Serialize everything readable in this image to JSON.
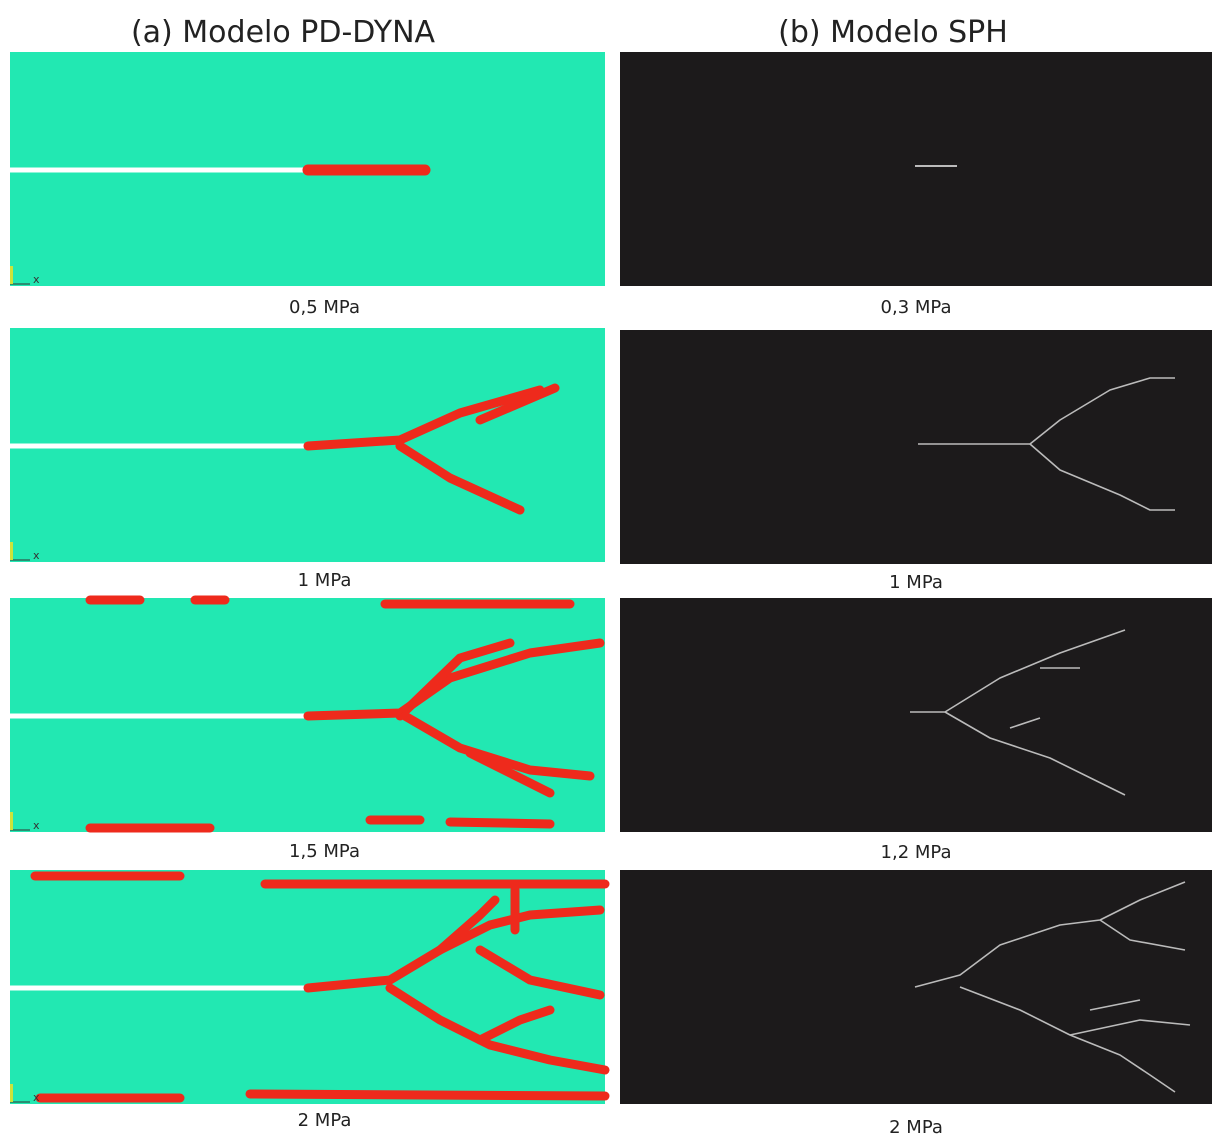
{
  "column_a": {
    "title": "(a) Modelo PD-DYNA",
    "axis_label": "x",
    "panels": [
      {
        "label": "0,5 MPa"
      },
      {
        "label": "1 MPa"
      },
      {
        "label": "1,5 MPa"
      },
      {
        "label": "2 MPa"
      }
    ]
  },
  "column_b": {
    "title": "(b) Modelo SPH",
    "panels": [
      {
        "label": "0,3 MPa"
      },
      {
        "label": "1 MPa"
      },
      {
        "label": "1,2 MPa"
      },
      {
        "label": "2 MPa"
      }
    ]
  }
}
